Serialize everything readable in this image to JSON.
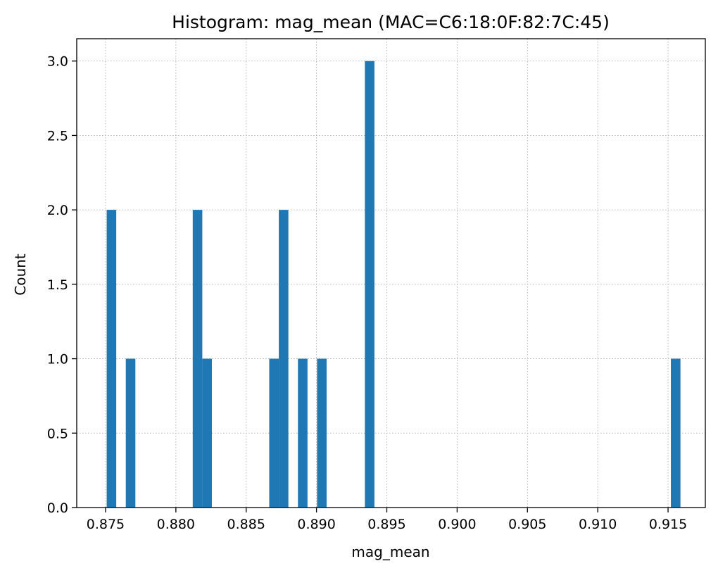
{
  "chart_data": {
    "type": "bar",
    "title": "Histogram: mag_mean (MAC=C6:18:0F:82:7C:45)",
    "xlabel": "mag_mean",
    "ylabel": "Count",
    "xlim": [
      0.87295,
      0.91765
    ],
    "ylim": [
      0,
      3.15
    ],
    "xticks": [
      "0.875",
      "0.880",
      "0.885",
      "0.890",
      "0.895",
      "0.900",
      "0.905",
      "0.910",
      "0.915"
    ],
    "yticks": [
      "0.0",
      "0.5",
      "1.0",
      "1.5",
      "2.0",
      "2.5",
      "3.0"
    ],
    "grid": true,
    "bin_width": 0.00068,
    "color": "#1f77b4",
    "bins": [
      {
        "x_start": 0.87508,
        "count": 2
      },
      {
        "x_start": 0.87644,
        "count": 1
      },
      {
        "x_start": 0.8812,
        "count": 2
      },
      {
        "x_start": 0.88188,
        "count": 1
      },
      {
        "x_start": 0.88664,
        "count": 1
      },
      {
        "x_start": 0.88732,
        "count": 2
      },
      {
        "x_start": 0.88868,
        "count": 1
      },
      {
        "x_start": 0.89004,
        "count": 1
      },
      {
        "x_start": 0.89344,
        "count": 3
      },
      {
        "x_start": 0.9152,
        "count": 1
      }
    ]
  }
}
